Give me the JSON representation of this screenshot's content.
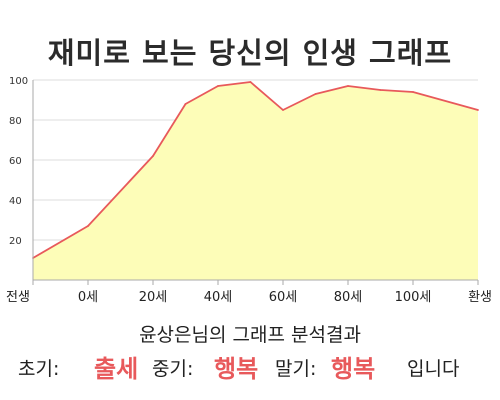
{
  "title": "재미로 보는 당신의 인생 그래프",
  "chart_data": {
    "type": "area",
    "x_tick_labels": [
      "전생",
      "0세",
      "20세",
      "40세",
      "60세",
      "80세",
      "100세",
      "환생"
    ],
    "y_ticks": [
      20,
      40,
      60,
      80,
      100
    ],
    "ylim": [
      0,
      100
    ],
    "line_color": "#e8595b",
    "fill_color": "#fdfdb8",
    "points": [
      {
        "age": "전생",
        "value": 11
      },
      {
        "age": 0,
        "value": 27
      },
      {
        "age": 20,
        "value": 62
      },
      {
        "age": 30,
        "value": 88
      },
      {
        "age": 40,
        "value": 97
      },
      {
        "age": 50,
        "value": 99
      },
      {
        "age": 60,
        "value": 85
      },
      {
        "age": 70,
        "value": 93
      },
      {
        "age": 80,
        "value": 97
      },
      {
        "age": 90,
        "value": 95
      },
      {
        "age": 100,
        "value": 94
      },
      {
        "age": "환생",
        "value": 85
      }
    ]
  },
  "analysis": {
    "heading": "윤상은님의 그래프 분석결과",
    "early_label": "초기:",
    "early_value": "출세",
    "middle_label": "중기:",
    "middle_value": "행복",
    "late_label": "말기:",
    "late_value": "행복",
    "ending": "입니다"
  }
}
